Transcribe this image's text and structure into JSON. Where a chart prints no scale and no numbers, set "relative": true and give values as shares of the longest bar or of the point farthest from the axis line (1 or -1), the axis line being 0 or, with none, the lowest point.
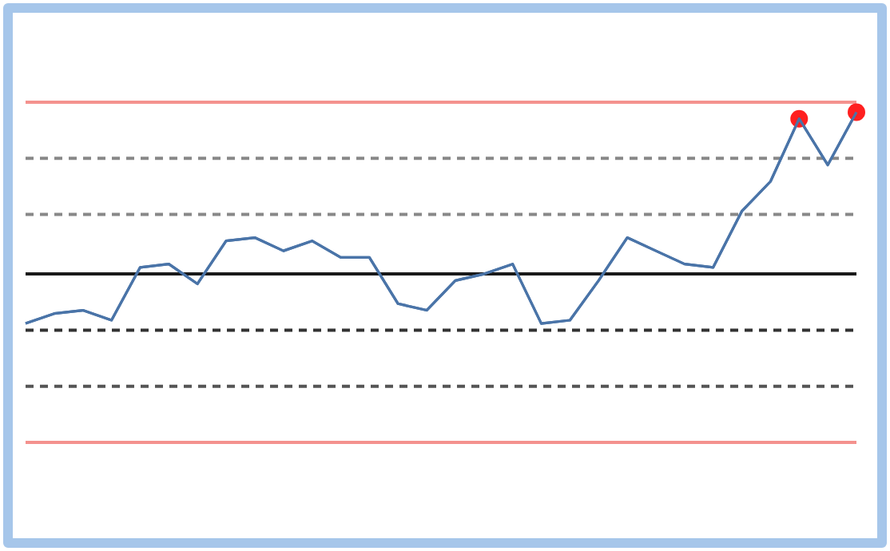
{
  "chart_data": {
    "type": "line",
    "relative": true,
    "categories": [
      null,
      null,
      null,
      null,
      null,
      null,
      null,
      null,
      null,
      null,
      null,
      null,
      null,
      null,
      null,
      null,
      null,
      null,
      null,
      null,
      null,
      null,
      null,
      null,
      null,
      null,
      null,
      null,
      null,
      null
    ],
    "series": [
      {
        "color": "#4a74a8",
        "marker": "none",
        "values": [
          0.36,
          0.39,
          0.4,
          0.37,
          0.53,
          0.54,
          0.48,
          0.61,
          0.62,
          0.58,
          0.61,
          0.56,
          0.56,
          0.42,
          0.4,
          0.49,
          0.51,
          0.54,
          0.36,
          0.37,
          0.49,
          0.62,
          0.58,
          0.54,
          0.53,
          0.7,
          0.79,
          0.98,
          0.84,
          1
        ],
        "colors": [
          null,
          null,
          null,
          null,
          null,
          null,
          null,
          null,
          null,
          null,
          null,
          null,
          null,
          null,
          null,
          null,
          null,
          null,
          null,
          null,
          null,
          null,
          null,
          null,
          null,
          null,
          null,
          "#ff2020",
          null,
          "#ff2020"
        ]
      }
    ],
    "ref_lines": [
      {
        "axis": "y",
        "value": 1.03,
        "color": "#f4928e",
        "line_style": "solid"
      },
      {
        "axis": "y",
        "value": 0.86,
        "color": "#888888",
        "line_style": "dashed"
      },
      {
        "axis": "y",
        "value": 0.69,
        "color": "#888888",
        "line_style": "dashed"
      },
      {
        "axis": "y",
        "value": 0.51,
        "color": "#1a1a1a",
        "line_style": "solid"
      },
      {
        "axis": "y",
        "value": 0.34,
        "color": "#333333",
        "line_style": "dashed"
      },
      {
        "axis": "y",
        "value": 0.17,
        "color": "#555555",
        "line_style": "dashed"
      },
      {
        "axis": "y",
        "value": 0,
        "color": "#f4928e",
        "line_style": "solid"
      }
    ],
    "legend": false
  }
}
